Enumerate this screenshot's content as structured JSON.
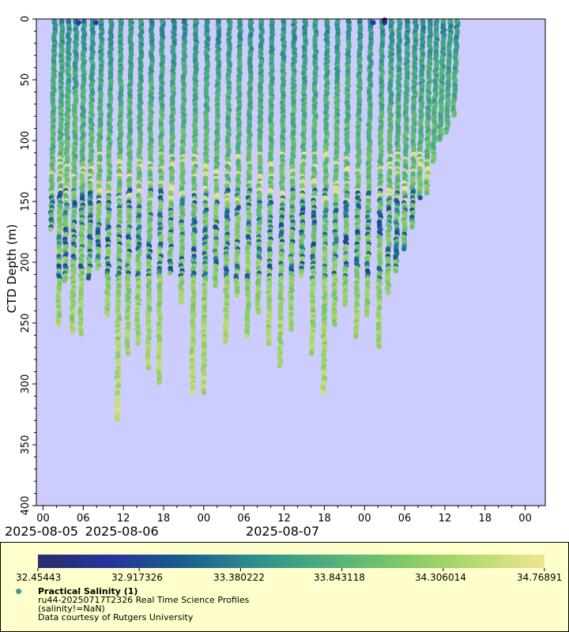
{
  "chart_data": {
    "type": "scatter",
    "ylabel": "CTD Depth (m)",
    "ylim": [
      400,
      0
    ],
    "yticks": [
      "0",
      "50",
      "100",
      "150",
      "200",
      "250",
      "300",
      "350",
      "400"
    ],
    "xlim_hours": [
      -1,
      75
    ],
    "xticks": [
      {
        "h": 0,
        "label": "00"
      },
      {
        "h": 6,
        "label": "06"
      },
      {
        "h": 12,
        "label": "12"
      },
      {
        "h": 18,
        "label": "18"
      },
      {
        "h": 24,
        "label": "00"
      },
      {
        "h": 30,
        "label": "06"
      },
      {
        "h": 36,
        "label": "12"
      },
      {
        "h": 42,
        "label": "18"
      },
      {
        "h": 48,
        "label": "00"
      },
      {
        "h": 54,
        "label": "06"
      },
      {
        "h": 60,
        "label": "12"
      },
      {
        "h": 66,
        "label": "18"
      },
      {
        "h": 72,
        "label": "00"
      }
    ],
    "date_labels": [
      {
        "h": 0,
        "label": "2025-08-05"
      },
      {
        "h": 12,
        "label": "2025-08-06"
      },
      {
        "h": 36,
        "label": "2025-08-07"
      }
    ],
    "colorbar": {
      "min": 32.45443,
      "max": 34.76891,
      "tick_labels": [
        "32.45443",
        "32.917326",
        "33.380222",
        "33.843118",
        "34.306014",
        "34.76891"
      ],
      "colors": [
        "#282d6b",
        "#25349d",
        "#185d8d",
        "#2e8f8d",
        "#4dae7e",
        "#7ec866",
        "#b4d96f",
        "#f0e595"
      ]
    },
    "profiles": [
      {
        "t": 1.2,
        "max_depth": 173
      },
      {
        "t": 2.3,
        "max_depth": 252
      },
      {
        "t": 3.3,
        "max_depth": 215
      },
      {
        "t": 4.4,
        "max_depth": 258
      },
      {
        "t": 5.6,
        "max_depth": 260
      },
      {
        "t": 6.9,
        "max_depth": 213
      },
      {
        "t": 8.2,
        "max_depth": 206
      },
      {
        "t": 9.6,
        "max_depth": 243
      },
      {
        "t": 11.1,
        "max_depth": 330
      },
      {
        "t": 12.6,
        "max_depth": 276
      },
      {
        "t": 14.1,
        "max_depth": 268
      },
      {
        "t": 15.7,
        "max_depth": 287
      },
      {
        "t": 17.3,
        "max_depth": 299
      },
      {
        "t": 19.0,
        "max_depth": 210
      },
      {
        "t": 20.6,
        "max_depth": 233
      },
      {
        "t": 22.3,
        "max_depth": 308
      },
      {
        "t": 24.0,
        "max_depth": 307
      },
      {
        "t": 25.7,
        "max_depth": 220
      },
      {
        "t": 27.3,
        "max_depth": 265
      },
      {
        "t": 28.9,
        "max_depth": 228
      },
      {
        "t": 30.5,
        "max_depth": 262
      },
      {
        "t": 32.1,
        "max_depth": 241
      },
      {
        "t": 33.7,
        "max_depth": 267
      },
      {
        "t": 35.4,
        "max_depth": 286
      },
      {
        "t": 37.0,
        "max_depth": 255
      },
      {
        "t": 38.6,
        "max_depth": 211
      },
      {
        "t": 40.2,
        "max_depth": 275
      },
      {
        "t": 41.9,
        "max_depth": 308
      },
      {
        "t": 43.5,
        "max_depth": 251
      },
      {
        "t": 45.1,
        "max_depth": 236
      },
      {
        "t": 46.8,
        "max_depth": 261
      },
      {
        "t": 48.4,
        "max_depth": 243
      },
      {
        "t": 50.1,
        "max_depth": 270
      },
      {
        "t": 51.5,
        "max_depth": 225
      },
      {
        "t": 52.7,
        "max_depth": 208
      },
      {
        "t": 53.9,
        "max_depth": 190
      },
      {
        "t": 55.1,
        "max_depth": 172
      },
      {
        "t": 56.2,
        "max_depth": 148
      },
      {
        "t": 57.3,
        "max_depth": 143
      },
      {
        "t": 58.3,
        "max_depth": 118
      },
      {
        "t": 59.3,
        "max_depth": 100
      },
      {
        "t": 60.3,
        "max_depth": 93
      },
      {
        "t": 61.3,
        "max_depth": 80
      }
    ],
    "legend": {
      "title": "Practical Salinity (1)",
      "line1": "ru44-20250717T2326 Real Time Science Profiles",
      "line2": "(salinity!=NaN)",
      "line3": "Data courtesy of Rutgers University"
    }
  }
}
